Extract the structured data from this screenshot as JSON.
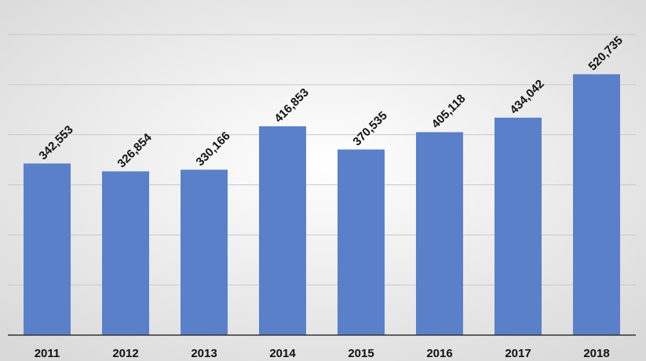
{
  "chart_data": {
    "type": "bar",
    "categories": [
      "2011",
      "2012",
      "2013",
      "2014",
      "2015",
      "2016",
      "2017",
      "2018"
    ],
    "values": [
      342553,
      326854,
      330166,
      416853,
      370535,
      405118,
      434042,
      520735
    ],
    "value_labels": [
      "342,553",
      "326,854",
      "330,166",
      "416,853",
      "370,535",
      "405,118",
      "434,042",
      "520,735"
    ],
    "color": "#5a80c9",
    "ylim": [
      0,
      600000
    ],
    "yticks": [
      0,
      100000,
      200000,
      300000,
      400000,
      500000,
      600000
    ],
    "grid": true
  }
}
